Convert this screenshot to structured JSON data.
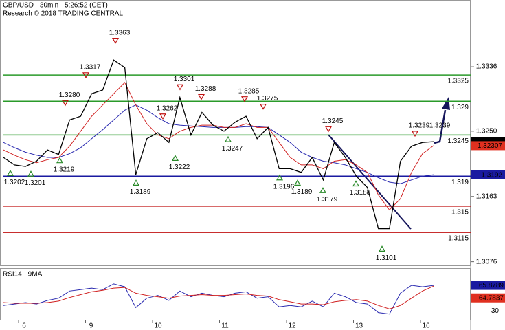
{
  "chart_data": {
    "type": "line",
    "title": "GBP/USD - 30min - 5:26:52 (CET)",
    "subtitle": "Research © 2018 TRADING CENTRAL",
    "x_labels": [
      "6",
      "9",
      "10",
      "11",
      "12",
      "13",
      "16"
    ],
    "ylim": [
      1.3072,
      1.3425
    ],
    "yticks": [
      1.3076,
      1.3163,
      {
        "value": 1.325,
        "label": "1.3250"
      },
      1.3336
    ],
    "series": [
      {
        "color": "#000000",
        "values": [
          1.3215,
          1.3205,
          1.3203,
          1.321,
          1.3225,
          1.3219,
          1.3265,
          1.327,
          1.33,
          1.3305,
          1.3345,
          1.3335,
          1.3192,
          1.324,
          1.3248,
          1.3235,
          1.3295,
          1.3245,
          1.3275,
          1.3258,
          1.325,
          1.3262,
          1.327,
          1.324,
          1.3255,
          1.32,
          1.32,
          1.3195,
          1.3215,
          1.3185,
          1.3235,
          1.3215,
          1.319,
          1.3175,
          1.312,
          1.312,
          1.321,
          1.323,
          1.3235,
          1.3236
        ]
      },
      {
        "color": "#d02020",
        "values": [
          1.3225,
          1.3218,
          1.3212,
          1.3208,
          1.3212,
          1.3215,
          1.323,
          1.325,
          1.327,
          1.3285,
          1.33,
          1.3315,
          1.3285,
          1.326,
          1.3245,
          1.324,
          1.325,
          1.3255,
          1.3258,
          1.3258,
          1.3255,
          1.3255,
          1.326,
          1.3255,
          1.3255,
          1.3235,
          1.3215,
          1.3205,
          1.3205,
          1.32,
          1.321,
          1.3212,
          1.3205,
          1.3195,
          1.3165,
          1.3145,
          1.316,
          1.3195,
          1.322,
          1.32307
        ]
      },
      {
        "color": "#2a2ab0",
        "values": [
          1.3235,
          1.3228,
          1.3222,
          1.3218,
          1.3215,
          1.3215,
          1.322,
          1.3228,
          1.324,
          1.3252,
          1.3265,
          1.3278,
          1.3285,
          1.3278,
          1.3268,
          1.326,
          1.3258,
          1.3257,
          1.3256,
          1.3255,
          1.3255,
          1.3255,
          1.3256,
          1.3256,
          1.3255,
          1.3245,
          1.3235,
          1.3222,
          1.3215,
          1.321,
          1.3208,
          1.3205,
          1.32,
          1.3195,
          1.3188,
          1.3182,
          1.318,
          1.3185,
          1.319,
          1.3192
        ]
      }
    ],
    "levels": [
      {
        "value": 1.3325,
        "color": "#2a9a2a"
      },
      {
        "value": 1.329,
        "color": "#2a9a2a"
      },
      {
        "value": 1.3245,
        "color": "#2a9a2a"
      },
      {
        "value": 1.319,
        "color": "#1a1aa0"
      },
      {
        "value": 1.315,
        "color": "#c01010"
      },
      {
        "value": 1.3115,
        "color": "#c01010"
      }
    ],
    "price_tags": [
      {
        "value": 1.3236,
        "color": "#000000"
      },
      {
        "value": 1.32307,
        "color": "#e03020"
      },
      {
        "value": 1.3192,
        "color": "#1a1aa0"
      }
    ],
    "annotations": [
      1.3202,
      1.3201,
      1.3219,
      {
        "value": 1.328,
        "label": "1.3280"
      },
      1.3317,
      1.3363,
      1.3189,
      1.3262,
      1.3222,
      1.3301,
      1.3288,
      1.3247,
      1.3285,
      1.3275,
      1.3196,
      1.3189,
      1.3179,
      1.3245,
      1.3188,
      1.3101,
      1.3239,
      1.3239
    ],
    "rsi": {
      "title": "RSI14 - 9MA",
      "ylim": [
        18,
        89
      ],
      "yticks": [
        30
      ],
      "series": [
        {
          "color": "#2a2ab0",
          "values": [
            38,
            40,
            42,
            40,
            45,
            48,
            58,
            60,
            62,
            60,
            68,
            64,
            35,
            48,
            52,
            45,
            58,
            50,
            55,
            52,
            50,
            55,
            57,
            48,
            50,
            36,
            38,
            36,
            44,
            36,
            55,
            50,
            42,
            40,
            28,
            26,
            55,
            66,
            64,
            65.8789
          ]
        },
        {
          "color": "#d02020",
          "values": [
            42,
            41,
            41,
            41,
            42,
            44,
            49,
            53,
            57,
            59,
            62,
            63,
            55,
            52,
            50,
            48,
            51,
            52,
            53,
            52,
            52,
            53,
            54,
            52,
            51,
            46,
            43,
            40,
            40,
            39,
            43,
            45,
            46,
            44,
            38,
            33,
            38,
            48,
            58,
            64.7837
          ]
        }
      ],
      "tags": [
        {
          "value": 65.8789,
          "color": "#1a1aa0"
        },
        {
          "value": 64.7837,
          "color": "#e03020"
        }
      ]
    }
  }
}
